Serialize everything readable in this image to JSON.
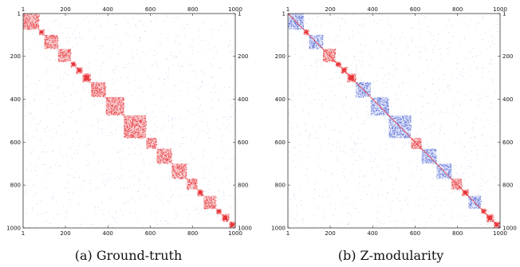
{
  "chart_data": [
    {
      "type": "heatmap",
      "caption": "(a) Ground-truth",
      "x_ticks": [
        "1",
        "200",
        "400",
        "600",
        "800",
        "1000"
      ],
      "y_ticks": [
        "1",
        "200",
        "400",
        "600",
        "800",
        "1000"
      ],
      "range": [
        1,
        1000
      ],
      "blocks": [
        {
          "start": 1,
          "end": 75,
          "color": "red"
        },
        {
          "start": 75,
          "end": 100,
          "color": "red"
        },
        {
          "start": 100,
          "end": 165,
          "color": "red"
        },
        {
          "start": 165,
          "end": 225,
          "color": "red"
        },
        {
          "start": 225,
          "end": 250,
          "color": "red"
        },
        {
          "start": 250,
          "end": 280,
          "color": "red"
        },
        {
          "start": 280,
          "end": 320,
          "color": "red"
        },
        {
          "start": 320,
          "end": 390,
          "color": "red"
        },
        {
          "start": 390,
          "end": 475,
          "color": "red"
        },
        {
          "start": 475,
          "end": 580,
          "color": "red"
        },
        {
          "start": 580,
          "end": 630,
          "color": "red"
        },
        {
          "start": 630,
          "end": 700,
          "color": "red"
        },
        {
          "start": 700,
          "end": 770,
          "color": "red"
        },
        {
          "start": 770,
          "end": 820,
          "color": "red"
        },
        {
          "start": 820,
          "end": 850,
          "color": "red"
        },
        {
          "start": 850,
          "end": 910,
          "color": "red"
        },
        {
          "start": 910,
          "end": 935,
          "color": "red"
        },
        {
          "start": 935,
          "end": 970,
          "color": "red"
        },
        {
          "start": 970,
          "end": 1000,
          "color": "red"
        }
      ],
      "colors": {
        "in_block": "#e8363a",
        "in_block_light": "#f3a0a4",
        "noise": "#7b8fe0",
        "frame": "#333333"
      }
    },
    {
      "type": "heatmap",
      "caption": "(b) Z-modularity",
      "x_ticks": [
        "1",
        "200",
        "400",
        "600",
        "800",
        "1000"
      ],
      "y_ticks": [
        "1",
        "200",
        "400",
        "600",
        "800",
        "1000"
      ],
      "range": [
        1,
        1000
      ],
      "blocks": [
        {
          "start": 1,
          "end": 75,
          "color": "blue"
        },
        {
          "start": 75,
          "end": 100,
          "color": "red"
        },
        {
          "start": 100,
          "end": 165,
          "color": "blue"
        },
        {
          "start": 165,
          "end": 225,
          "color": "red"
        },
        {
          "start": 225,
          "end": 250,
          "color": "red"
        },
        {
          "start": 250,
          "end": 280,
          "color": "red"
        },
        {
          "start": 280,
          "end": 320,
          "color": "red"
        },
        {
          "start": 320,
          "end": 390,
          "color": "blue"
        },
        {
          "start": 390,
          "end": 475,
          "color": "blue"
        },
        {
          "start": 475,
          "end": 580,
          "color": "blue"
        },
        {
          "start": 580,
          "end": 630,
          "color": "red"
        },
        {
          "start": 630,
          "end": 700,
          "color": "blue"
        },
        {
          "start": 700,
          "end": 770,
          "color": "blue"
        },
        {
          "start": 770,
          "end": 820,
          "color": "red"
        },
        {
          "start": 820,
          "end": 850,
          "color": "red"
        },
        {
          "start": 850,
          "end": 910,
          "color": "blue"
        },
        {
          "start": 910,
          "end": 935,
          "color": "red"
        },
        {
          "start": 935,
          "end": 970,
          "color": "red"
        },
        {
          "start": 970,
          "end": 1000,
          "color": "red"
        }
      ],
      "colors": {
        "in_block": "#e8363a",
        "in_block_light": "#f3a0a4",
        "blue_block": "#5a6fd8",
        "noise": "#7b8fe0",
        "frame": "#333333"
      }
    }
  ]
}
